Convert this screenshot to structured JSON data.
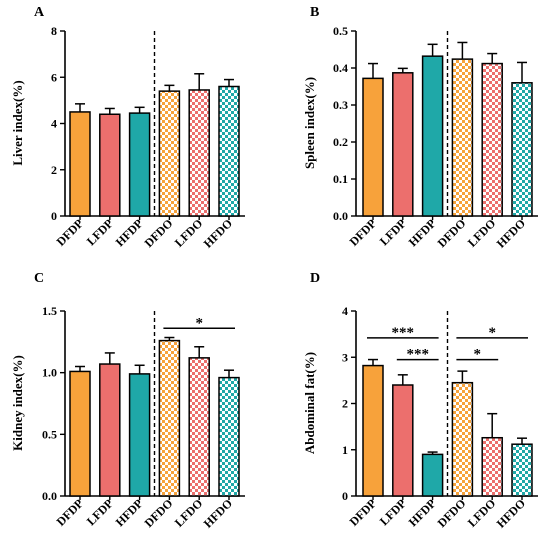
{
  "colors": {
    "DFDP": "#F7A23B",
    "LFDP": "#EC6F6D",
    "HFDP": "#1FA8A8",
    "DFDO": "#F7A23B",
    "LFDO": "#EC6F6D",
    "HFDO": "#1FA8A8",
    "axis": "#000000"
  },
  "chart_data": [
    {
      "panel": "A",
      "type": "bar",
      "ylabel": "Liver index(%)",
      "ylim": [
        0,
        8
      ],
      "yticks": [
        "0",
        "2",
        "4",
        "6",
        "8"
      ],
      "categories": [
        "DFDP",
        "LFDP",
        "HFDP",
        "DFDO",
        "LFDO",
        "HFDO"
      ],
      "patterned": [
        false,
        false,
        false,
        true,
        true,
        true
      ],
      "values": [
        4.5,
        4.4,
        4.45,
        5.4,
        5.45,
        5.6
      ],
      "errors": [
        0.35,
        0.25,
        0.25,
        0.25,
        0.7,
        0.3
      ],
      "significance": []
    },
    {
      "panel": "B",
      "type": "bar",
      "ylabel": "Spleen index(%)",
      "ylim": [
        0,
        0.5
      ],
      "yticks": [
        "0.0",
        "0.1",
        "0.2",
        "0.3",
        "0.4",
        "0.5"
      ],
      "categories": [
        "DFDP",
        "LFDP",
        "HFDP",
        "DFDO",
        "LFDO",
        "HFDO"
      ],
      "patterned": [
        false,
        false,
        false,
        true,
        true,
        true
      ],
      "values": [
        0.372,
        0.387,
        0.432,
        0.424,
        0.412,
        0.36
      ],
      "errors": [
        0.04,
        0.012,
        0.032,
        0.045,
        0.027,
        0.055
      ],
      "significance": []
    },
    {
      "panel": "C",
      "type": "bar",
      "ylabel": "Kidney index(%)",
      "ylim": [
        0,
        1.5
      ],
      "yticks": [
        "0.0",
        "0.5",
        "1.0",
        "1.5"
      ],
      "categories": [
        "DFDP",
        "LFDP",
        "HFDP",
        "DFDO",
        "LFDO",
        "HFDO"
      ],
      "patterned": [
        false,
        false,
        false,
        true,
        true,
        true
      ],
      "values": [
        1.01,
        1.07,
        0.99,
        1.26,
        1.12,
        0.96
      ],
      "errors": [
        0.04,
        0.09,
        0.07,
        0.025,
        0.09,
        0.06
      ],
      "significance": [
        {
          "from": 3,
          "to": 5,
          "label": "*",
          "y": 1.36
        }
      ]
    },
    {
      "panel": "D",
      "type": "bar",
      "ylabel": "Abdominal fat(%)",
      "ylim": [
        0,
        4
      ],
      "yticks": [
        "0",
        "1",
        "2",
        "3",
        "4"
      ],
      "categories": [
        "DFDP",
        "LFDP",
        "HFDP",
        "DFDO",
        "LFDO",
        "HFDO"
      ],
      "patterned": [
        false,
        false,
        false,
        true,
        true,
        true
      ],
      "values": [
        2.82,
        2.4,
        0.9,
        2.45,
        1.26,
        1.12
      ],
      "errors": [
        0.13,
        0.22,
        0.05,
        0.25,
        0.52,
        0.13
      ],
      "significance": [
        {
          "from": 0,
          "to": 2,
          "label": "***",
          "y": 3.42
        },
        {
          "from": 1,
          "to": 2,
          "label": "***",
          "y": 2.95
        },
        {
          "from": 3,
          "to": 5,
          "label": "*",
          "y": 3.42
        },
        {
          "from": 3,
          "to": 4,
          "label": "*",
          "y": 2.95
        }
      ]
    }
  ]
}
